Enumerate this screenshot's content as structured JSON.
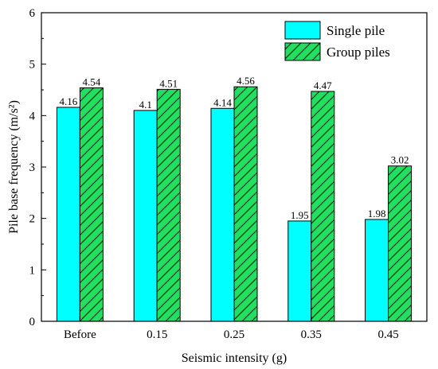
{
  "chart_data": {
    "type": "bar",
    "categories": [
      "Before",
      "0.15",
      "0.25",
      "0.35",
      "0.45"
    ],
    "series": [
      {
        "name": "Single pile",
        "values": [
          4.16,
          4.1,
          4.14,
          1.95,
          1.98
        ],
        "value_labels": [
          "4.16",
          "4.1",
          "4.14",
          "1.95",
          "1.98"
        ],
        "color": "#00FFFF",
        "pattern": "solid"
      },
      {
        "name": "Group piles",
        "values": [
          4.54,
          4.51,
          4.56,
          4.47,
          3.02
        ],
        "value_labels": [
          "4.54",
          "4.51",
          "4.56",
          "4.47",
          "3.02"
        ],
        "color": "#22E05F",
        "pattern": "diagonal-hatch"
      }
    ],
    "xlabel": "Seismic intensity (g)",
    "ylabel": "Pile base frequency (m/s²)",
    "ylim": [
      0,
      6
    ],
    "yticks": [
      "0",
      "1",
      "2",
      "3",
      "4",
      "5",
      "6"
    ],
    "grid": false,
    "legend_position": "top-right"
  }
}
